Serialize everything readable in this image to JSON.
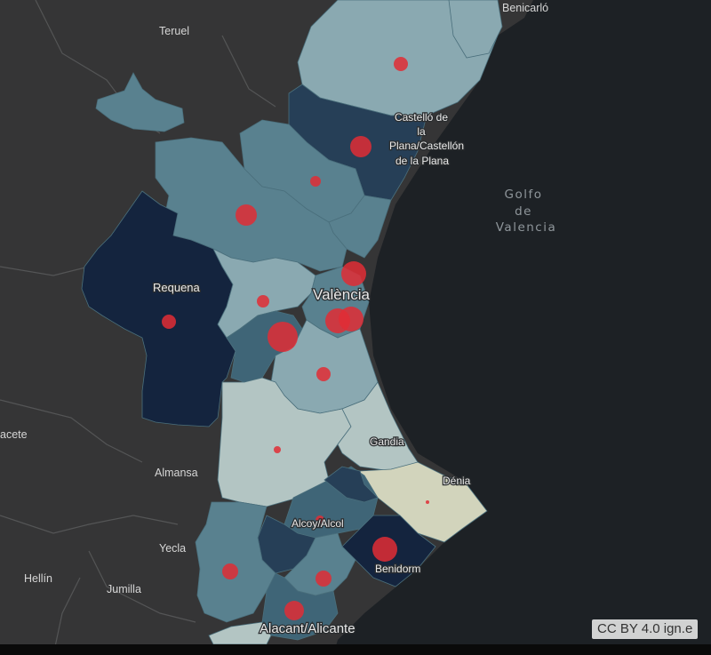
{
  "map": {
    "colors": {
      "sea": "#1d2125",
      "land": "#353536",
      "border": "#545556",
      "dark_navy": "#14243e",
      "dark_slate": "#263f57",
      "mid_slate": "#3f6577",
      "steel": "#59818f",
      "light_steel": "#8aa9b1",
      "pale": "#b3c5c3",
      "beige": "#d2d4bc",
      "marker": "#e02d35"
    },
    "labels": {
      "benicarlo": "Benicarló",
      "teruel": "Teruel",
      "castello_line1": "Castelló de",
      "castello_line2": "la",
      "castello_line3": "Plana/Castellón",
      "castello_line4": "de la Plana",
      "golfo_line1": "Golfo",
      "golfo_line2": "de",
      "golfo_line3": "Valencia",
      "requena": "Requena",
      "valencia": "València",
      "albacete": "acete",
      "gandia": "Gandia",
      "almansa": "Almansa",
      "denia": "Dénia",
      "alcoy": "Alcoy/Alcol",
      "yecla": "Yecla",
      "benidorm": "Benidorm",
      "hellin": "Hellín",
      "jumilla": "Jumilla",
      "alicante": "Alacant/Alicante"
    },
    "attribution": "CC BY 4.0 ign.e"
  }
}
